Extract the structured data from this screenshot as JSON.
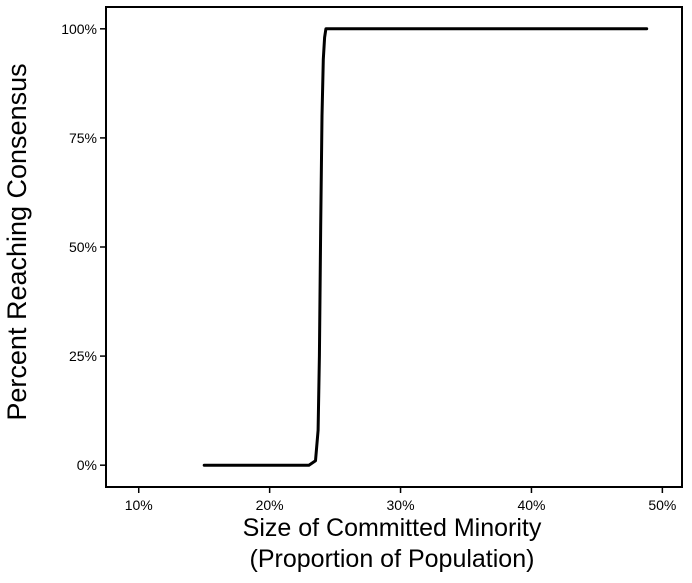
{
  "chart_data": {
    "type": "line",
    "title": "",
    "xlabel": "Size of Committed Minority",
    "xlabel_line2": "(Proportion of Population)",
    "ylabel": "Percent Reaching Consensus",
    "xlim": [
      7.5,
      51.5
    ],
    "ylim": [
      -5,
      105
    ],
    "xticks": [
      10,
      20,
      30,
      40,
      50
    ],
    "xtick_labels": [
      "10%",
      "20%",
      "30%",
      "40%",
      "50%"
    ],
    "yticks": [
      0,
      25,
      50,
      75,
      100
    ],
    "ytick_labels": [
      "0%",
      "25%",
      "50%",
      "75%",
      "100%"
    ],
    "grid": false,
    "legend": "none",
    "line_color": "#000000",
    "series": [
      {
        "x": [
          15,
          16,
          17,
          18,
          19,
          20,
          21,
          22,
          23,
          23.5,
          23.7,
          23.8,
          23.9,
          24.0,
          24.1,
          24.2,
          24.3,
          25,
          30,
          35,
          40,
          45,
          48.8
        ],
        "values": [
          0,
          0,
          0,
          0,
          0,
          0,
          0,
          0,
          0,
          1,
          8,
          25,
          55,
          80,
          93,
          98,
          100,
          100,
          100,
          100,
          100,
          100,
          100
        ]
      }
    ]
  }
}
